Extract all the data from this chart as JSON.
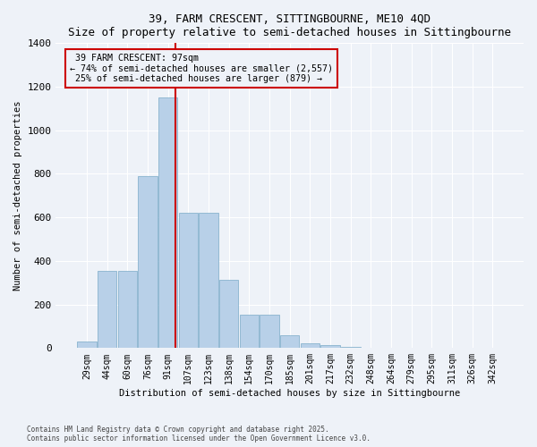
{
  "title": "39, FARM CRESCENT, SITTINGBOURNE, ME10 4QD",
  "subtitle": "Size of property relative to semi-detached houses in Sittingbourne",
  "xlabel": "Distribution of semi-detached houses by size in Sittingbourne",
  "ylabel": "Number of semi-detached properties",
  "categories": [
    "29sqm",
    "44sqm",
    "60sqm",
    "76sqm",
    "91sqm",
    "107sqm",
    "123sqm",
    "138sqm",
    "154sqm",
    "170sqm",
    "185sqm",
    "201sqm",
    "217sqm",
    "232sqm",
    "248sqm",
    "264sqm",
    "279sqm",
    "295sqm",
    "311sqm",
    "326sqm",
    "342sqm"
  ],
  "values": [
    30,
    355,
    355,
    790,
    1150,
    620,
    620,
    315,
    155,
    155,
    60,
    20,
    15,
    5,
    0,
    0,
    0,
    0,
    0,
    0,
    0
  ],
  "bar_color": "#b8d0e8",
  "bar_edge_color": "#7aaac8",
  "vline_color": "#cc0000",
  "ylim": [
    0,
    1400
  ],
  "yticks": [
    0,
    200,
    400,
    600,
    800,
    1000,
    1200,
    1400
  ],
  "bg_color": "#eef2f8",
  "grid_color": "#ffffff",
  "property_label": "39 FARM CRESCENT: 97sqm",
  "pct_smaller": 74,
  "n_smaller": 2557,
  "pct_larger": 25,
  "n_larger": 879,
  "footer_line1": "Contains HM Land Registry data © Crown copyright and database right 2025.",
  "footer_line2": "Contains public sector information licensed under the Open Government Licence v3.0."
}
